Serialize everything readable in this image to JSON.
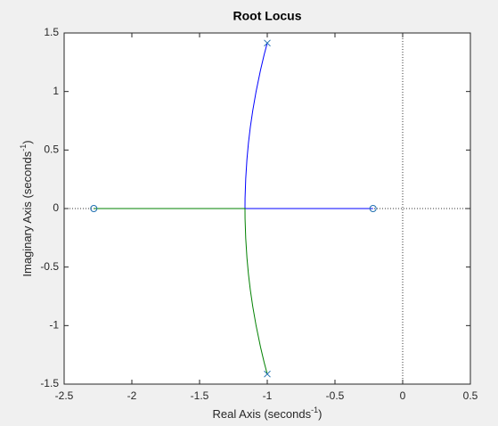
{
  "chart_data": {
    "type": "root-locus",
    "title": "Root Locus",
    "xlabel": [
      "Real Axis (seconds",
      "-1",
      ")"
    ],
    "ylabel": [
      "Imaginary Axis (seconds",
      "-1",
      ")"
    ],
    "xlim": [
      -2.5,
      0.5
    ],
    "ylim": [
      -1.5,
      1.5
    ],
    "xticks": [
      -2.5,
      -2,
      -1.5,
      -1,
      -0.5,
      0,
      0.5
    ],
    "yticks": [
      -1.5,
      -1,
      -0.5,
      0,
      0.5,
      1,
      1.5
    ],
    "zero_lines": true,
    "series": [
      {
        "color": "#0000ff",
        "x": [
          -1,
          -1.023,
          -1.05,
          -1.083,
          -1.107,
          -1.125,
          -1.139,
          -1.15,
          -1.159,
          -1.164,
          -1.1645,
          -0.219
        ],
        "y": [
          1.414,
          1.314,
          1.182,
          0.997,
          0.838,
          0.696,
          0.56,
          0.421,
          0.256,
          0.087,
          0,
          0
        ]
      },
      {
        "color": "#008000",
        "x": [
          -1,
          -1.023,
          -1.05,
          -1.083,
          -1.107,
          -1.125,
          -1.139,
          -1.15,
          -1.159,
          -1.164,
          -1.1645,
          -2.281
        ],
        "y": [
          -1.414,
          -1.314,
          -1.182,
          -0.997,
          -0.838,
          -0.696,
          -0.56,
          -0.421,
          -0.256,
          -0.087,
          0,
          0
        ]
      }
    ],
    "marker_color": "#1f6fb0",
    "poles": {
      "x": [
        -1,
        -1
      ],
      "y": [
        1.414,
        -1.414
      ]
    },
    "zeros": {
      "x": [
        -2.281,
        -0.219
      ],
      "y": [
        0,
        0
      ]
    }
  }
}
